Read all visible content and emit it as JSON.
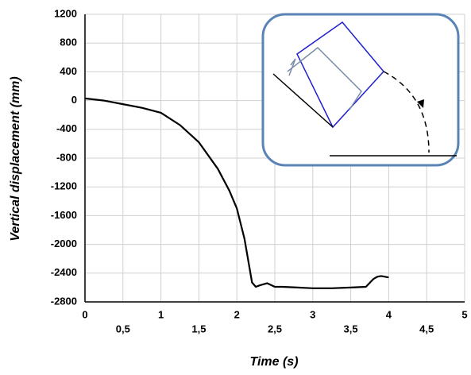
{
  "chart_data": {
    "type": "line",
    "x_label": "Time (s)",
    "y_label": "Vertical displacement  (mm)",
    "x": [
      0,
      0.25,
      0.5,
      0.75,
      1,
      1.25,
      1.5,
      1.75,
      1.9,
      2,
      2.1,
      2.2,
      2.25,
      2.3,
      2.4,
      2.5,
      2.6,
      2.8,
      3,
      3.25,
      3.5,
      3.7,
      3.8,
      3.85,
      3.9,
      4
    ],
    "series": [
      {
        "color": "#000000",
        "values": [
          30,
          0,
          -50,
          -100,
          -170,
          -340,
          -580,
          -950,
          -1250,
          -1500,
          -1920,
          -2530,
          -2590,
          -2570,
          -2540,
          -2590,
          -2590,
          -2600,
          -2610,
          -2610,
          -2600,
          -2590,
          -2480,
          -2450,
          -2440,
          -2460
        ]
      }
    ],
    "xlim": [
      0,
      5
    ],
    "xticks": [
      0,
      {
        "value": 0.5,
        "label": "0,5"
      },
      1,
      {
        "value": 1.5,
        "label": "1,5"
      },
      2,
      {
        "value": 2.5,
        "label": "2,5"
      },
      3,
      {
        "value": 3.5,
        "label": "3,5"
      },
      4,
      {
        "value": 4.5,
        "label": "4,5"
      },
      5
    ],
    "ylim": [
      -2800,
      1200
    ],
    "yticks": [
      -2800,
      -2400,
      -2000,
      -1600,
      -1200,
      -800,
      -400,
      0,
      400,
      800,
      1200
    ],
    "grid": true
  }
}
